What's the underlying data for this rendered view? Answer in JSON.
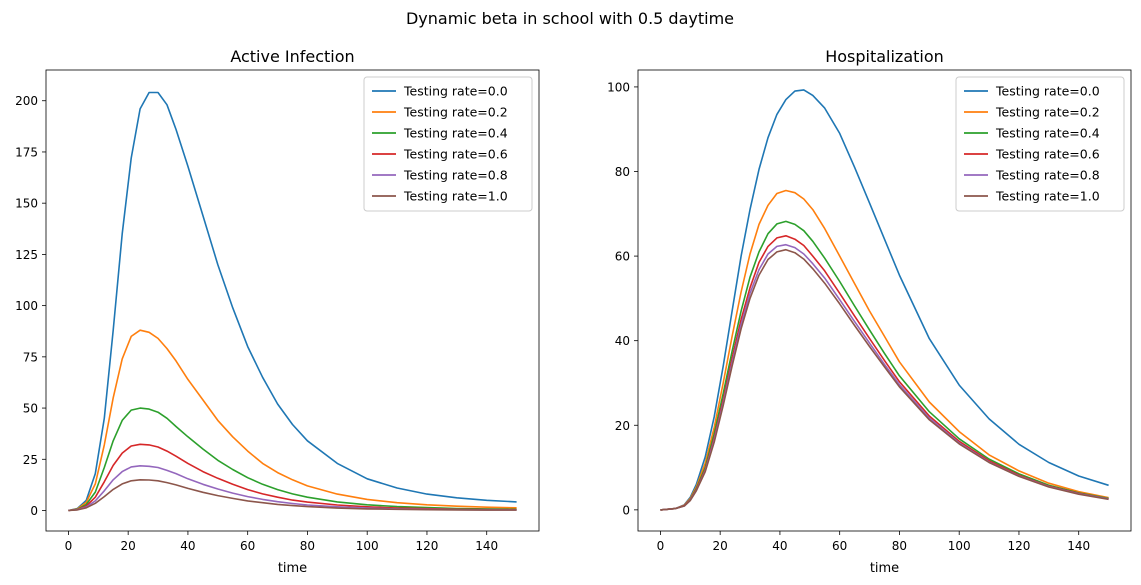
{
  "suptitle": "Dynamic beta in school with 0.5 daytime",
  "chart_data": [
    {
      "type": "line",
      "title": "Active Infection",
      "xlabel": "time",
      "ylabel": "",
      "xlim": [
        -7.5,
        157.5
      ],
      "ylim": [
        -10,
        215
      ],
      "xticks": [
        0,
        20,
        40,
        60,
        80,
        100,
        120,
        140
      ],
      "yticks": [
        0,
        25,
        50,
        75,
        100,
        125,
        150,
        175,
        200
      ],
      "grid": false,
      "legend_position": "upper right",
      "x": [
        0,
        3,
        6,
        9,
        12,
        15,
        18,
        21,
        24,
        27,
        30,
        33,
        36,
        40,
        45,
        50,
        55,
        60,
        65,
        70,
        75,
        80,
        90,
        100,
        110,
        120,
        130,
        140,
        150
      ],
      "series": [
        {
          "name": "Testing rate=0.0",
          "color": "#1f77b4",
          "values": [
            0,
            1,
            5,
            18,
            45,
            88,
            135,
            172,
            196,
            204,
            204,
            198,
            186,
            168,
            144,
            120,
            99,
            80,
            65,
            52,
            42,
            34,
            23,
            15.5,
            11,
            8,
            6.2,
            5,
            4.2
          ]
        },
        {
          "name": "Testing rate=0.2",
          "color": "#ff7f0e",
          "values": [
            0,
            0.8,
            4,
            13,
            32,
            55,
            74,
            85,
            88,
            87,
            84,
            79,
            73,
            64,
            54,
            44,
            36,
            29,
            23,
            18.5,
            15,
            12,
            8,
            5.4,
            3.8,
            2.8,
            2.1,
            1.6,
            1.3
          ]
        },
        {
          "name": "Testing rate=0.4",
          "color": "#2ca02c",
          "values": [
            0,
            0.6,
            3,
            9,
            21,
            34,
            44,
            49,
            50,
            49.5,
            48,
            45,
            41,
            36,
            30,
            24.5,
            20,
            16,
            12.8,
            10.2,
            8.1,
            6.5,
            4.2,
            2.8,
            1.9,
            1.4,
            1,
            0.8,
            0.6
          ]
        },
        {
          "name": "Testing rate=0.6",
          "color": "#d62728",
          "values": [
            0,
            0.5,
            2.2,
            6.5,
            14,
            22,
            28,
            31.5,
            32.3,
            32,
            31,
            29,
            26.5,
            23,
            19,
            15.7,
            12.8,
            10.2,
            8.1,
            6.5,
            5.1,
            4.1,
            2.7,
            1.8,
            1.2,
            0.9,
            0.6,
            0.5,
            0.4
          ]
        },
        {
          "name": "Testing rate=0.8",
          "color": "#9467bd",
          "values": [
            0,
            0.4,
            1.7,
            4.7,
            9.6,
            15,
            19,
            21.3,
            21.8,
            21.6,
            21,
            19.6,
            18,
            15.5,
            12.8,
            10.5,
            8.5,
            6.8,
            5.4,
            4.3,
            3.4,
            2.7,
            1.8,
            1.2,
            0.8,
            0.6,
            0.4,
            0.3,
            0.3
          ]
        },
        {
          "name": "Testing rate=1.0",
          "color": "#8c564b",
          "values": [
            0,
            0.3,
            1.3,
            3.5,
            6.8,
            10.3,
            13,
            14.5,
            15,
            14.9,
            14.5,
            13.6,
            12.5,
            10.8,
            8.9,
            7.3,
            5.9,
            4.7,
            3.8,
            3,
            2.4,
            1.9,
            1.2,
            0.8,
            0.6,
            0.4,
            0.3,
            0.2,
            0.2
          ]
        }
      ]
    },
    {
      "type": "line",
      "title": "Hospitalization",
      "xlabel": "time",
      "ylabel": "",
      "xlim": [
        -7.5,
        157.5
      ],
      "ylim": [
        -5,
        104
      ],
      "xticks": [
        0,
        20,
        40,
        60,
        80,
        100,
        120,
        140
      ],
      "yticks": [
        0,
        20,
        40,
        60,
        80,
        100
      ],
      "grid": false,
      "legend_position": "upper right",
      "x": [
        0,
        5,
        8,
        10,
        12,
        15,
        18,
        21,
        24,
        27,
        30,
        33,
        36,
        39,
        42,
        45,
        48,
        51,
        55,
        60,
        65,
        70,
        75,
        80,
        90,
        100,
        110,
        120,
        130,
        140,
        150
      ],
      "series": [
        {
          "name": "Testing rate=0.0",
          "color": "#1f77b4",
          "values": [
            0,
            0.3,
            1.2,
            3,
            6,
            12.5,
            22,
            34,
            47,
            60,
            71,
            80.5,
            88,
            93.5,
            97,
            99,
            99.3,
            98,
            95,
            89,
            81,
            72.5,
            64,
            55.5,
            40.5,
            29.5,
            21.5,
            15.5,
            11.2,
            8,
            5.8
          ]
        },
        {
          "name": "Testing rate=0.2",
          "color": "#ff7f0e",
          "values": [
            0,
            0.3,
            1.1,
            2.7,
            5.4,
            11,
            19.5,
            30,
            41,
            51.5,
            60.5,
            67.5,
            72,
            74.8,
            75.5,
            75,
            73.5,
            71,
            66.5,
            60,
            53.5,
            47,
            41,
            35,
            25.5,
            18.5,
            13,
            9.2,
            6.3,
            4.3,
            2.9
          ]
        },
        {
          "name": "Testing rate=0.4",
          "color": "#2ca02c",
          "values": [
            0,
            0.3,
            1,
            2.5,
            5,
            10,
            18,
            27.5,
            37.5,
            47,
            55,
            61,
            65.3,
            67.6,
            68.2,
            67.5,
            66,
            63.5,
            59.5,
            54,
            48.2,
            42.5,
            37,
            31.7,
            23.2,
            16.8,
            12,
            8.5,
            5.8,
            4,
            2.7
          ]
        },
        {
          "name": "Testing rate=0.6",
          "color": "#d62728",
          "values": [
            0,
            0.3,
            1,
            2.4,
            4.8,
            9.5,
            17,
            26,
            35.8,
            45,
            52.5,
            58.5,
            62.3,
            64.3,
            64.8,
            64,
            62.5,
            60,
            56.5,
            51.2,
            45.8,
            40.5,
            35.3,
            30.3,
            22.2,
            16.2,
            11.6,
            8.2,
            5.6,
            3.9,
            2.6
          ]
        },
        {
          "name": "Testing rate=0.8",
          "color": "#9467bd",
          "values": [
            0,
            0.3,
            0.9,
            2.3,
            4.6,
            9.2,
            16.5,
            25.3,
            34.8,
            43.8,
            51.2,
            56.8,
            60.5,
            62.3,
            62.7,
            62,
            60.5,
            58.2,
            54.8,
            49.7,
            44.5,
            39.4,
            34.4,
            29.6,
            21.7,
            15.8,
            11.3,
            8,
            5.5,
            3.8,
            2.6
          ]
        },
        {
          "name": "Testing rate=1.0",
          "color": "#8c564b",
          "values": [
            0,
            0.3,
            0.9,
            2.2,
            4.5,
            9,
            16,
            24.7,
            34,
            42.8,
            50,
            55.5,
            59.2,
            61,
            61.5,
            60.8,
            59.3,
            57,
            53.6,
            48.7,
            43.6,
            38.6,
            33.8,
            29.1,
            21.3,
            15.6,
            11.2,
            7.9,
            5.4,
            3.7,
            2.5
          ]
        }
      ]
    }
  ]
}
